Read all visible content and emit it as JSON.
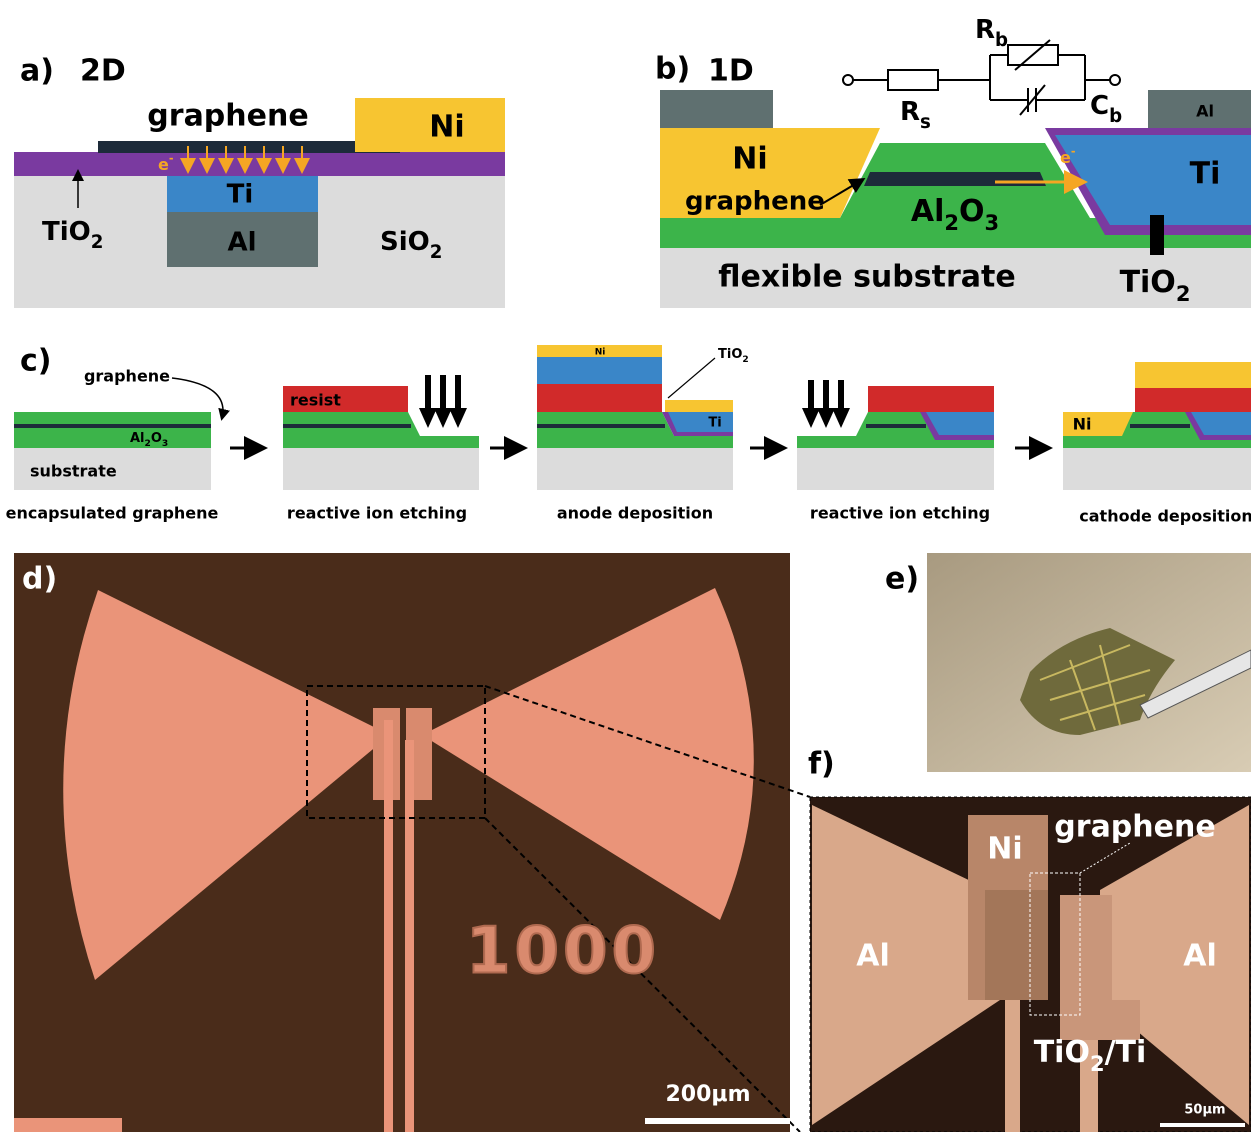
{
  "panel_a": {
    "label": "a)",
    "title": "2D",
    "graphene": "graphene",
    "ni": "Ni",
    "electron": {
      "text": "e",
      "sup": "-"
    },
    "ti": "Ti",
    "tio2": {
      "text": "TiO",
      "sub": "2"
    },
    "al": "Al",
    "sio2": {
      "text": "SiO",
      "sub": "2"
    }
  },
  "panel_b": {
    "label": "b)",
    "title": "1D",
    "rb": {
      "text": "R",
      "sub": "b"
    },
    "rs": {
      "text": "R",
      "sub": "s"
    },
    "cb": {
      "text": "C",
      "sub": "b"
    },
    "al": "Al",
    "ni": "Ni",
    "graphene": "graphene",
    "al2o3": {
      "text": "Al",
      "sub": "2",
      "text2": "O",
      "sub2": "3"
    },
    "ti": "Ti",
    "electron": {
      "text": "e",
      "sup": "-"
    },
    "substrate": "flexible substrate",
    "tio2": {
      "text": "TiO",
      "sub": "2"
    }
  },
  "panel_c": {
    "label": "c)",
    "graphene": "graphene",
    "al2o3": {
      "text": "Al",
      "sub": "2",
      "text2": "O",
      "sub2": "3"
    },
    "substrate": "substrate",
    "resist": "resist",
    "ni": "Ni",
    "tio2": {
      "text": "TiO",
      "sub": "2"
    },
    "ti": "Ti",
    "ni_cathode": "Ni",
    "steps": [
      "encapsulated graphene",
      "reactive ion etching",
      "anode deposition",
      "reactive ion etching",
      "cathode deposition"
    ]
  },
  "panel_d": {
    "label": "d)",
    "marker": "1000",
    "scale": "200μm"
  },
  "panel_e": {
    "label": "e)"
  },
  "panel_f": {
    "label": "f)",
    "ni": "Ni",
    "graphene": "graphene",
    "al_left": "Al",
    "al_right": "Al",
    "tio2_ti": {
      "text": "TiO",
      "sub": "2",
      "text2": "/Ti"
    },
    "scale": "50μm"
  }
}
